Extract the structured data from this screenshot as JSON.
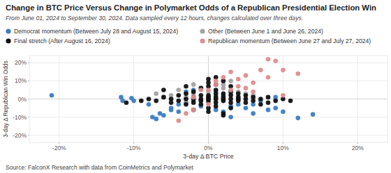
{
  "chart_data": {
    "type": "scatter",
    "title": "Change in BTC Price Versus Change in Polymarket Odds of a Republican Presidential Election Win",
    "subtitle": "From June 01, 2024 to September 30, 2024. Data sampled every 12 hours, changes calculated over three days.",
    "x_label": "3-day Δ BTC Price",
    "y_label": "3-day Δ Republican Win Odds",
    "source": "Source: FalconX Research with data from CoinMetrics and Polymarket",
    "xlim": [
      -24,
      24
    ],
    "ylim": [
      -24,
      24
    ],
    "xticks": [
      {
        "value": -20,
        "label": "-20%"
      },
      {
        "value": -10,
        "label": "-10%"
      },
      {
        "value": 0,
        "label": "0%"
      },
      {
        "value": 10,
        "label": "10%"
      },
      {
        "value": 20,
        "label": "20%"
      }
    ],
    "yticks": [
      {
        "value": -20,
        "label": "-20%"
      },
      {
        "value": -10,
        "label": "-10%"
      },
      {
        "value": 0,
        "label": "0%"
      },
      {
        "value": 10,
        "label": "10%"
      },
      {
        "value": 20,
        "label": "20%"
      }
    ],
    "grid": true,
    "marker": "circle",
    "series": [
      {
        "name": "Democrat momentum (Between July 28 and August 15, 2024)",
        "color": "#3c7dc4",
        "x": [
          -21,
          -11.7,
          -11.5,
          -10.3,
          -10,
          -8,
          -7.5,
          -7,
          -6,
          -6.5,
          -5,
          -4,
          -3,
          -2,
          -1,
          1,
          2,
          3,
          4,
          5,
          6,
          8,
          9,
          10,
          12,
          14,
          -3,
          -2,
          1,
          2,
          -4,
          -5,
          3,
          6,
          7,
          9
        ],
        "values": [
          2,
          1,
          -1,
          0.5,
          -1,
          -3,
          -10,
          -11,
          -9,
          -8,
          -5,
          -3,
          -2,
          -1,
          -4,
          -6,
          -7,
          -10,
          -3,
          -5,
          -8,
          -6,
          -5,
          -7,
          -10.5,
          -8.5,
          4,
          5,
          4,
          2,
          -7,
          -6,
          -4,
          -3,
          -1,
          1
        ]
      },
      {
        "name": "Other (Between June 1 and June 26, 2024)",
        "color": "#a3a3a3",
        "x": [
          -7,
          -5,
          -4,
          -3,
          -2,
          -1,
          0,
          1,
          2,
          3,
          4,
          5,
          -1,
          0,
          1,
          2,
          6,
          -6,
          3,
          2,
          -2,
          4,
          0,
          -3
        ],
        "values": [
          3,
          2,
          5,
          1,
          3,
          6,
          4,
          2,
          6,
          3,
          1,
          3,
          -1,
          -2,
          -1,
          -1,
          2,
          1,
          10,
          8,
          8,
          4,
          1,
          -2
        ]
      },
      {
        "name": "Final stretch (After August 16, 2024)",
        "color": "#111111",
        "x": [
          -11,
          -9,
          -8,
          -7,
          -6,
          -5,
          -5,
          -4,
          -4,
          -3,
          -3,
          -3,
          -2,
          -2,
          -2,
          -2,
          -1,
          -1,
          -1,
          -1,
          0,
          0,
          0,
          0,
          0,
          0,
          0,
          0,
          0,
          1,
          1,
          1,
          1,
          1,
          1,
          1,
          2,
          2,
          2,
          2,
          2,
          2,
          3,
          3,
          3,
          3,
          3,
          4,
          4,
          4,
          4,
          5,
          5,
          5,
          6,
          6,
          7,
          7,
          8,
          8,
          9,
          10,
          11,
          -6,
          -1,
          -2,
          2,
          3,
          -3,
          1
        ],
        "values": [
          -2,
          -1,
          0,
          -1,
          1,
          0,
          -2,
          2,
          -1,
          0,
          3,
          -3,
          0,
          1,
          -2,
          4,
          0,
          2,
          -1,
          -3,
          0,
          1,
          -1,
          2,
          7,
          9,
          11,
          -5,
          -7,
          0,
          1,
          -2,
          3,
          5,
          8,
          -4,
          0,
          1,
          -1,
          3,
          10,
          -8,
          0,
          2,
          -2,
          4,
          -5,
          0,
          1,
          -1,
          3,
          0,
          -2,
          2,
          -1,
          1,
          0,
          -3,
          -2,
          1,
          -1,
          0,
          -1,
          5,
          6,
          -6,
          -9,
          7,
          7,
          12
        ]
      },
      {
        "name": "Republican momentum (Between June 27 and July 27, 2024)",
        "color": "#e08c8c",
        "x": [
          -4,
          -3,
          -2,
          0,
          1,
          2,
          3,
          4,
          5,
          6,
          7,
          8,
          9,
          10,
          12,
          8,
          4,
          1,
          -1,
          3,
          5,
          -2,
          0,
          6,
          10
        ],
        "values": [
          -12,
          -8,
          -6,
          5,
          8,
          12,
          15,
          11,
          13,
          9,
          16,
          22,
          21,
          16,
          14,
          12,
          7,
          10,
          5,
          5,
          6,
          1,
          -3,
          4,
          2
        ]
      }
    ]
  }
}
